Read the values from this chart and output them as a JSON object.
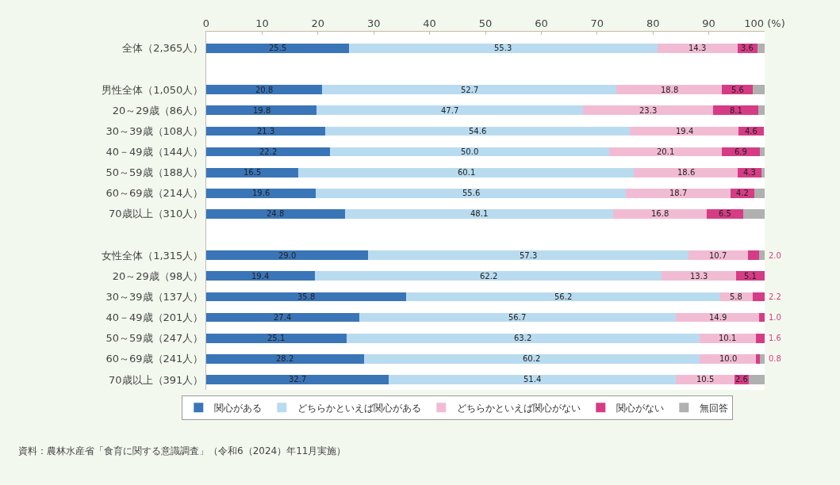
{
  "chart_data": {
    "type": "bar",
    "orientation": "horizontal",
    "stacked": true,
    "categories": [
      "全体（2,365人）",
      null,
      "男性全体（1,050人）",
      "20～29歳（86人）",
      "30～39歳（108人）",
      "40－49歳（144人）",
      "50～59歳（188人）",
      "60～69歳（214人）",
      "70歳以上（310人）",
      null,
      "女性全体（1,315人）",
      "20～29歳（98人）",
      "30～39歳（137人）",
      "40－49歳（201人）",
      "50～59歳（247人）",
      "60～69歳（241人）",
      "70歳以上（391人）"
    ],
    "series": [
      {
        "name": "関心がある",
        "color": "#3a75b8",
        "values": [
          25.5,
          null,
          20.8,
          19.8,
          21.3,
          22.2,
          16.5,
          19.6,
          24.8,
          null,
          29.0,
          19.4,
          35.8,
          27.4,
          25.1,
          28.2,
          32.7
        ],
        "value_labels": [
          "25.5",
          null,
          "20.8",
          "19.8",
          "21.3",
          "22.2",
          "16.5",
          "19.6",
          "24.8",
          null,
          "29.0",
          "19.4",
          "35.8",
          "27.4",
          "25.1",
          "28.2",
          "32.7"
        ]
      },
      {
        "name": "どちらかといえば関心がある",
        "color": "#b9dbf0",
        "values": [
          55.3,
          null,
          52.7,
          47.7,
          54.6,
          50.0,
          60.1,
          55.6,
          48.1,
          null,
          57.3,
          62.2,
          56.2,
          56.7,
          63.2,
          60.2,
          51.4
        ],
        "value_labels": [
          "55.3",
          null,
          "52.7",
          "47.7",
          "54.6",
          "50.0",
          "60.1",
          "55.6",
          "48.1",
          null,
          "57.3",
          "62.2",
          "56.2",
          "56.7",
          "63.2",
          "60.2",
          "51.4"
        ]
      },
      {
        "name": "どちらかといえば関心がない",
        "color": "#f1bcd3",
        "values": [
          14.3,
          null,
          18.8,
          23.3,
          19.4,
          20.1,
          18.6,
          18.7,
          16.8,
          null,
          10.7,
          13.3,
          5.8,
          14.9,
          10.1,
          10.0,
          10.5
        ],
        "value_labels": [
          "14.3",
          null,
          "18.8",
          "23.3",
          "19.4",
          "20.1",
          "18.6",
          "18.7",
          "16.8",
          null,
          "10.7",
          "13.3",
          "5.8",
          "14.9",
          "10.1",
          "10.0",
          "10.5"
        ]
      },
      {
        "name": "関心がない",
        "color": "#d63c86",
        "values": [
          3.6,
          null,
          5.6,
          8.1,
          4.6,
          6.9,
          4.3,
          4.2,
          6.5,
          null,
          2.0,
          5.1,
          2.2,
          1.0,
          1.6,
          0.8,
          2.6
        ],
        "value_labels": [
          "3.6",
          null,
          "5.6",
          "8.1",
          "4.6",
          "6.9",
          "4.3",
          "4.2",
          "6.5",
          null,
          "2.0",
          "5.1",
          "2.2",
          "1.0",
          "1.6",
          "0.8",
          "2.6"
        ]
      },
      {
        "name": "無回答",
        "color": "#b0b0b0",
        "values": [
          1.3,
          null,
          2.1,
          1.1,
          null,
          0.8,
          0.5,
          1.9,
          3.8,
          null,
          1.0,
          null,
          null,
          null,
          null,
          0.8,
          2.8
        ]
      }
    ],
    "xlim": [
      0,
      100
    ],
    "xticks": [
      0,
      10,
      20,
      30,
      40,
      50,
      60,
      70,
      80,
      90,
      {
        "value": 100,
        "label": "100 (%)"
      }
    ],
    "grid": false,
    "legend": "bottom",
    "annotations": [
      "資料：農林水産省「食育に関する意識調査」（令和6（2024）年11月実施）"
    ]
  }
}
